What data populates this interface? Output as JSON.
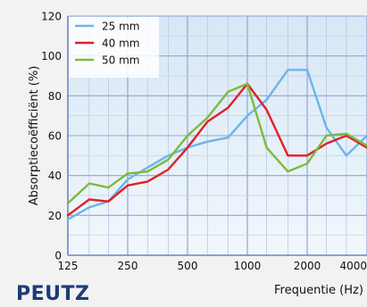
{
  "chart_data": {
    "type": "line",
    "ylabel": "Absorptiecoëfficiënt (%)",
    "xlabel": "Frequentie (Hz)",
    "xscale": "log",
    "x_tick_labels": [
      "125",
      "250",
      "500",
      "1000",
      "2000",
      "4000"
    ],
    "x_tick_values": [
      125,
      250,
      500,
      1000,
      2000,
      4000
    ],
    "ylim": [
      0,
      120
    ],
    "y_tick_labels": [
      "0",
      "20",
      "40",
      "60",
      "80",
      "100",
      "120"
    ],
    "y_tick_values": [
      0,
      20,
      40,
      60,
      80,
      100,
      120
    ],
    "grid": true,
    "legend_position": "top-left",
    "x": [
      125,
      160,
      200,
      250,
      315,
      400,
      500,
      630,
      800,
      1000,
      1250,
      1600,
      2000,
      2500,
      3150,
      4000
    ],
    "series": [
      {
        "name": "25 mm",
        "color": "#6ab6e8",
        "values": [
          18,
          24,
          27,
          38,
          44,
          50,
          54,
          57,
          59,
          70,
          78,
          93,
          93,
          64,
          50,
          60
        ]
      },
      {
        "name": "40 mm",
        "color": "#e41e26",
        "values": [
          20,
          28,
          27,
          35,
          37,
          43,
          54,
          67,
          74,
          86,
          73,
          50,
          50,
          56,
          60,
          54
        ]
      },
      {
        "name": "50 mm",
        "color": "#7cba3c",
        "values": [
          26,
          36,
          34,
          41,
          42,
          48,
          60,
          69,
          82,
          86,
          54,
          42,
          46,
          60,
          61,
          55
        ]
      }
    ]
  },
  "logo": {
    "text": "PEUTZ",
    "color": "#1f3a78"
  }
}
